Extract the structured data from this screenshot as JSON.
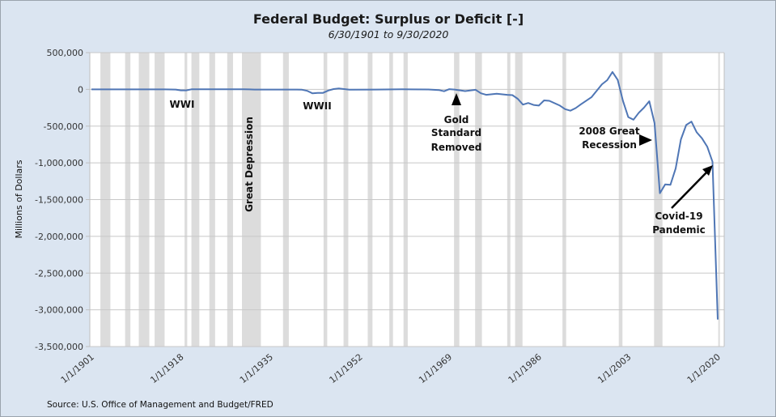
{
  "chart_data": {
    "type": "line",
    "title": "Federal Budget: Surplus or Deficit [-]",
    "subtitle": "6/30/1901 to 9/30/2020",
    "xlabel": "",
    "ylabel": "Millions of Dollars",
    "ylim": [
      -3500000,
      500000
    ],
    "y_ticks": [
      500000,
      0,
      -500000,
      -1000000,
      -1500000,
      -2000000,
      -2500000,
      -3000000,
      -3500000
    ],
    "y_tick_labels": [
      "500,000",
      "0",
      "-500,000",
      "-1,000,000",
      "-1,500,000",
      "-2,000,000",
      "-2,500,000",
      "-3,000,000",
      "-3,500,000"
    ],
    "xlim": [
      1901,
      2021
    ],
    "x_ticks": [
      1901,
      1918,
      1935,
      1952,
      1969,
      1986,
      2003,
      2020
    ],
    "x_tick_labels": [
      "1/1/1901",
      "1/1/1918",
      "1/1/1935",
      "1/1/1952",
      "1/1/1969",
      "1/1/1986",
      "1/1/2003",
      "1/1/2020"
    ],
    "grid": true,
    "line_color": "#4f76b5",
    "recession_color": "#dcdcdc",
    "series": [
      {
        "name": "Federal Budget: Surplus or Deficit [-]",
        "x": [
          1901,
          1905,
          1910,
          1915,
          1917,
          1918,
          1919,
          1920,
          1925,
          1930,
          1931,
          1932,
          1935,
          1940,
          1941,
          1942,
          1943,
          1944,
          1945,
          1946,
          1947,
          1948,
          1950,
          1955,
          1960,
          1965,
          1967,
          1968,
          1969,
          1970,
          1972,
          1974,
          1975,
          1976,
          1978,
          1980,
          1981,
          1982,
          1983,
          1984,
          1985,
          1986,
          1987,
          1988,
          1990,
          1991,
          1992,
          1993,
          1994,
          1996,
          1998,
          1999,
          2000,
          2001,
          2002,
          2003,
          2004,
          2005,
          2006,
          2007,
          2008,
          2009,
          2010,
          2011,
          2012,
          2013,
          2014,
          2015,
          2016,
          2017,
          2018,
          2019,
          2020
        ],
        "y": [
          0,
          0,
          0,
          0,
          -3000,
          -13000,
          -13000,
          300,
          700,
          700,
          -500,
          -2700,
          -2800,
          -2900,
          -4900,
          -20500,
          -54600,
          -47600,
          -47600,
          -15900,
          4000,
          11800,
          -3100,
          -3000,
          300,
          -1400,
          -8600,
          -25200,
          3200,
          -2800,
          -23400,
          -6100,
          -53200,
          -73700,
          -59200,
          -73800,
          -79000,
          -128000,
          -207800,
          -185400,
          -212300,
          -221200,
          -149700,
          -155200,
          -221000,
          -269200,
          -290300,
          -255100,
          -203200,
          -107400,
          69300,
          125600,
          236200,
          128200,
          -157800,
          -377600,
          -412700,
          -318300,
          -248200,
          -160700,
          -458600,
          -1412700,
          -1294400,
          -1299600,
          -1076600,
          -679800,
          -484600,
          -438500,
          -584700,
          -665400,
          -779100,
          -984400,
          -3131900
        ]
      }
    ],
    "recessions": [
      [
        1902.7,
        1904.6
      ],
      [
        1907.4,
        1908.4
      ],
      [
        1910.0,
        1912.0
      ],
      [
        1913.0,
        1914.9
      ],
      [
        1918.7,
        1919.2
      ],
      [
        1920.0,
        1921.5
      ],
      [
        1923.4,
        1924.5
      ],
      [
        1926.8,
        1927.9
      ],
      [
        1929.6,
        1933.2
      ],
      [
        1937.4,
        1938.5
      ],
      [
        1945.1,
        1945.8
      ],
      [
        1948.9,
        1949.8
      ],
      [
        1953.5,
        1954.4
      ],
      [
        1957.6,
        1958.3
      ],
      [
        1960.3,
        1961.1
      ],
      [
        1969.9,
        1970.9
      ],
      [
        1973.9,
        1975.2
      ],
      [
        1980.0,
        1980.6
      ],
      [
        1981.5,
        1982.9
      ],
      [
        1990.5,
        1991.2
      ],
      [
        2001.2,
        2001.9
      ],
      [
        2007.9,
        2009.5
      ],
      [
        2020.1,
        2020.4
      ]
    ],
    "annotations": [
      {
        "name": "wwi",
        "lines": [
          "WWI"
        ]
      },
      {
        "name": "great-depression",
        "lines": [
          "Great Depression"
        ]
      },
      {
        "name": "wwii",
        "lines": [
          "WWII"
        ]
      },
      {
        "name": "gold-standard",
        "lines": [
          "Gold",
          "Standard",
          "Removed"
        ]
      },
      {
        "name": "great-recession",
        "lines": [
          "2008 Great",
          "Recession"
        ]
      },
      {
        "name": "covid",
        "lines": [
          "Covid-19",
          "Pandemic"
        ]
      }
    ],
    "source": "Source: U.S. Office of Management and Budget/FRED"
  }
}
